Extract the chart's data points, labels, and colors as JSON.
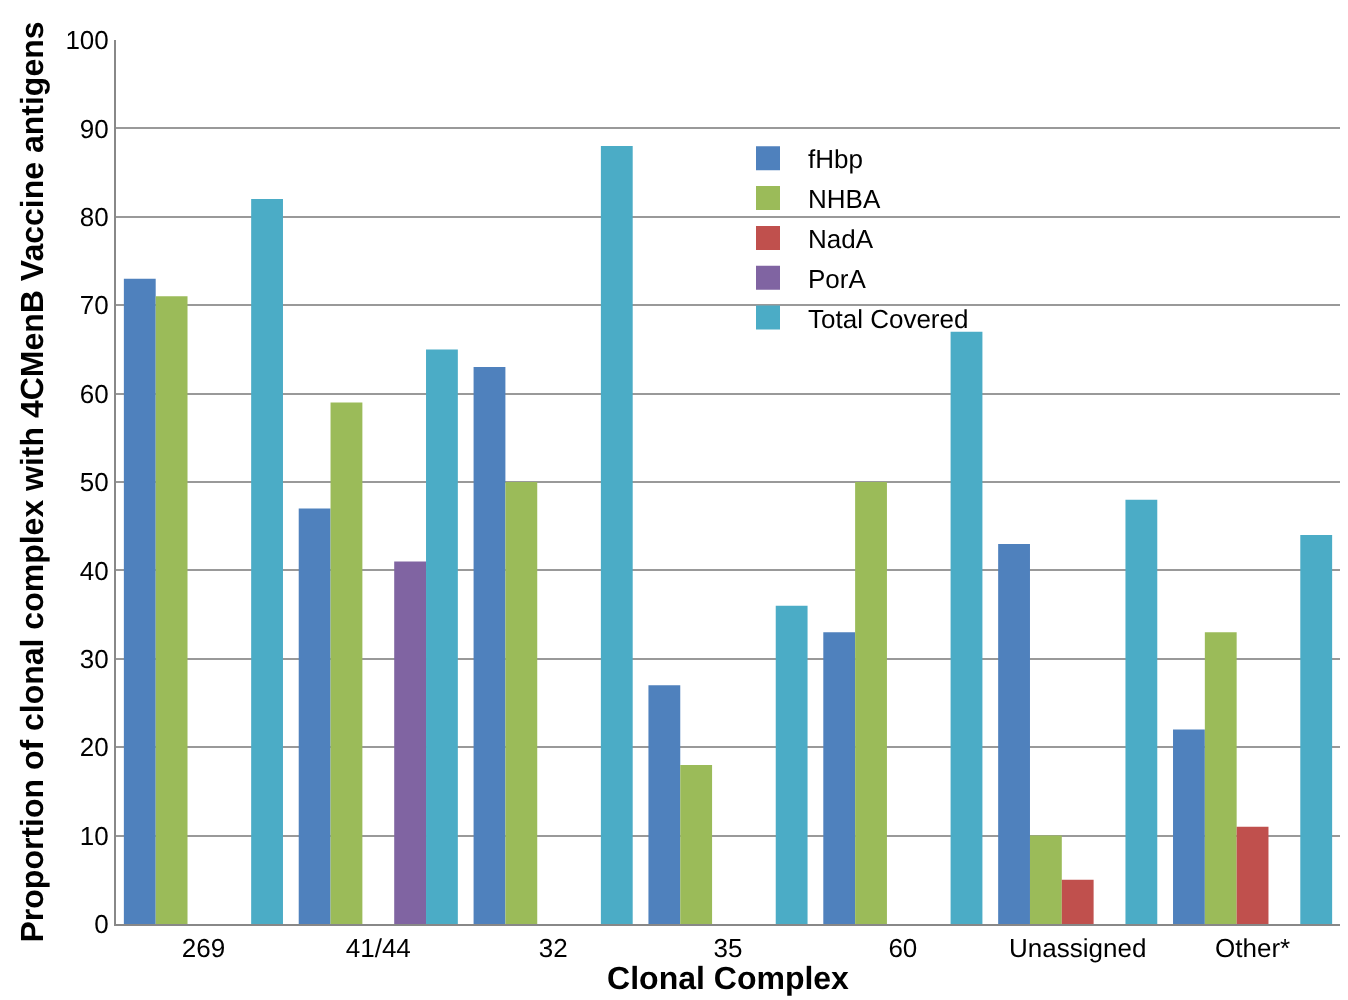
{
  "chart_data": {
    "type": "bar",
    "xlabel": "Clonal Complex",
    "ylabel": "Proportion of clonal complex with 4CMenB Vaccine antigens",
    "categories": [
      "269",
      "41/44",
      "32",
      "35",
      "60",
      "Unassigned",
      "Other*"
    ],
    "series": [
      {
        "name": "fHbp",
        "color": "#4f81bd",
        "values": [
          73,
          47,
          63,
          27,
          33,
          43,
          22
        ]
      },
      {
        "name": "NHBA",
        "color": "#9bbb59",
        "values": [
          71,
          59,
          50,
          18,
          50,
          10,
          33
        ]
      },
      {
        "name": "NadA",
        "color": "#c0504d",
        "values": [
          0,
          0,
          0,
          0,
          0,
          5,
          11
        ]
      },
      {
        "name": "PorA",
        "color": "#8064a2",
        "values": [
          0,
          41,
          0,
          0,
          0,
          0,
          0
        ]
      },
      {
        "name": "Total Covered",
        "color": "#4bacc6",
        "values": [
          82,
          65,
          88,
          36,
          67,
          48,
          44
        ]
      }
    ],
    "ylim": [
      0,
      100
    ],
    "yticks": [
      0,
      10,
      20,
      30,
      40,
      50,
      60,
      70,
      80,
      90,
      100
    ],
    "grid": "y",
    "legend": "top"
  }
}
